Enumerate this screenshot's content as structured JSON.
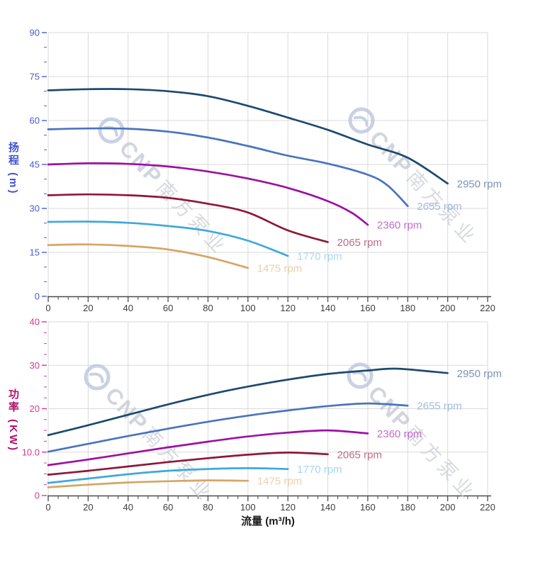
{
  "watermark": {
    "brand": "CNP",
    "brand_cn": "南方泵业",
    "logo": "cnp-circle-logo",
    "color": "#c6cbd6"
  },
  "palette": {
    "grid": "#dadada",
    "x_axis_line": "#4a4a4a",
    "x_tick_label": "#3d3d3d",
    "head_axis": "#4a5cd0",
    "head_title": "#3f51d0",
    "power_axis": "#d23c90",
    "power_title": "#b0126e"
  },
  "chart_data": [
    {
      "type": "line",
      "title": "",
      "ylabel": "扬程 (m)",
      "xlabel": "流量 (m³/h)",
      "xlim": [
        0,
        220
      ],
      "ylim": [
        0,
        90
      ],
      "grid": true,
      "legend_position": "curve-end-labels",
      "axis_color": "#4a5cd0",
      "title_color": "#3f51d0",
      "x_ticks": {
        "values": [
          0,
          20,
          40,
          60,
          80,
          100,
          120,
          140,
          160,
          180,
          200,
          220
        ],
        "labels": [
          "0",
          "20",
          "40",
          "60",
          "80",
          "100",
          "120",
          "140",
          "160",
          "180",
          "200",
          "220"
        ]
      },
      "y_ticks": {
        "values": [
          0,
          15,
          30,
          45,
          60,
          75,
          90
        ],
        "labels": [
          "0",
          "15",
          "30",
          "45",
          "60",
          "75",
          "90"
        ]
      },
      "x_minor_step": 5,
      "y_minor_step": 5,
      "series": [
        {
          "name": "2950 rpm",
          "color": "#1c4a70",
          "label_color": "#7b93b5",
          "points": [
            [
              0,
              70.3
            ],
            [
              20,
              70.7
            ],
            [
              40,
              70.7
            ],
            [
              60,
              70.0
            ],
            [
              80,
              68.3
            ],
            [
              100,
              65.0
            ],
            [
              120,
              61.0
            ],
            [
              140,
              56.8
            ],
            [
              160,
              51.8
            ],
            [
              180,
              47.3
            ],
            [
              200,
              38.5
            ]
          ]
        },
        {
          "name": "2655 rpm",
          "color": "#4a73c0",
          "label_color": "#a3bbdf",
          "points": [
            [
              0,
              57.0
            ],
            [
              20,
              57.3
            ],
            [
              40,
              57.2
            ],
            [
              60,
              56.2
            ],
            [
              80,
              54.2
            ],
            [
              100,
              51.3
            ],
            [
              120,
              48.0
            ],
            [
              140,
              45.3
            ],
            [
              160,
              41.5
            ],
            [
              170,
              37.8
            ],
            [
              180,
              30.8
            ]
          ]
        },
        {
          "name": "2360 rpm",
          "color": "#9c10a5",
          "label_color": "#c46ed0",
          "points": [
            [
              0,
              45.0
            ],
            [
              20,
              45.4
            ],
            [
              40,
              45.2
            ],
            [
              60,
              44.3
            ],
            [
              80,
              42.6
            ],
            [
              100,
              40.2
            ],
            [
              120,
              37.0
            ],
            [
              140,
              32.5
            ],
            [
              152,
              28.5
            ],
            [
              160,
              24.4
            ]
          ]
        },
        {
          "name": "2065 rpm",
          "color": "#8e1838",
          "label_color": "#bd6d8a",
          "points": [
            [
              0,
              34.5
            ],
            [
              20,
              34.8
            ],
            [
              40,
              34.5
            ],
            [
              60,
              33.6
            ],
            [
              80,
              31.6
            ],
            [
              100,
              28.6
            ],
            [
              120,
              22.5
            ],
            [
              140,
              18.5
            ]
          ]
        },
        {
          "name": "1770 rpm",
          "color": "#3fa8dd",
          "label_color": "#a6d7f2",
          "points": [
            [
              0,
              25.4
            ],
            [
              20,
              25.5
            ],
            [
              40,
              25.1
            ],
            [
              60,
              24.0
            ],
            [
              80,
              22.3
            ],
            [
              100,
              19.0
            ],
            [
              120,
              13.8
            ]
          ]
        },
        {
          "name": "1475 rpm",
          "color": "#d8a464",
          "label_color": "#ead0ab",
          "points": [
            [
              0,
              17.5
            ],
            [
              20,
              17.7
            ],
            [
              40,
              17.2
            ],
            [
              60,
              16.0
            ],
            [
              80,
              13.4
            ],
            [
              100,
              9.7
            ]
          ]
        }
      ]
    },
    {
      "type": "line",
      "title": "",
      "ylabel": "功率 (KW)",
      "xlabel": "流量 (m³/h)",
      "xlim": [
        0,
        220
      ],
      "ylim": [
        0,
        40
      ],
      "grid": true,
      "legend_position": "curve-end-labels",
      "axis_color": "#d23c90",
      "title_color": "#b0126e",
      "x_ticks": {
        "values": [
          0,
          20,
          40,
          60,
          80,
          100,
          120,
          140,
          160,
          180,
          200,
          220
        ],
        "labels": [
          "0",
          "20",
          "40",
          "60",
          "80",
          "100",
          "120",
          "140",
          "160",
          "180",
          "200",
          "220"
        ]
      },
      "y_ticks": {
        "values": [
          0,
          10,
          20,
          30,
          40
        ],
        "labels": [
          "0",
          "10.0",
          "20",
          "30",
          "40"
        ]
      },
      "x_minor_step": 5,
      "y_minor_step": 2.5,
      "series": [
        {
          "name": "2950 rpm",
          "color": "#1c4a70",
          "label_color": "#7b93b5",
          "points": [
            [
              0,
              13.9
            ],
            [
              20,
              16.2
            ],
            [
              40,
              18.6
            ],
            [
              60,
              21.0
            ],
            [
              80,
              23.2
            ],
            [
              100,
              25.1
            ],
            [
              120,
              26.7
            ],
            [
              140,
              28.0
            ],
            [
              160,
              28.8
            ],
            [
              175,
              29.2
            ],
            [
              200,
              28.2
            ]
          ]
        },
        {
          "name": "2655 rpm",
          "color": "#4a73c0",
          "label_color": "#a3bbdf",
          "points": [
            [
              0,
              10.1
            ],
            [
              20,
              11.9
            ],
            [
              40,
              13.7
            ],
            [
              60,
              15.4
            ],
            [
              80,
              17.0
            ],
            [
              100,
              18.4
            ],
            [
              120,
              19.6
            ],
            [
              140,
              20.6
            ],
            [
              160,
              21.2
            ],
            [
              180,
              20.7
            ]
          ]
        },
        {
          "name": "2360 rpm",
          "color": "#9c10a5",
          "label_color": "#c46ed0",
          "points": [
            [
              0,
              7.0
            ],
            [
              20,
              8.3
            ],
            [
              40,
              9.7
            ],
            [
              60,
              11.1
            ],
            [
              80,
              12.4
            ],
            [
              100,
              13.6
            ],
            [
              120,
              14.5
            ],
            [
              140,
              15.0
            ],
            [
              160,
              14.3
            ]
          ]
        },
        {
          "name": "2065 rpm",
          "color": "#8e1838",
          "label_color": "#bd6d8a",
          "points": [
            [
              0,
              4.8
            ],
            [
              20,
              5.7
            ],
            [
              40,
              6.7
            ],
            [
              60,
              7.7
            ],
            [
              80,
              8.6
            ],
            [
              100,
              9.4
            ],
            [
              120,
              9.9
            ],
            [
              140,
              9.5
            ]
          ]
        },
        {
          "name": "1770 rpm",
          "color": "#3fa8dd",
          "label_color": "#a6d7f2",
          "points": [
            [
              0,
              2.9
            ],
            [
              20,
              3.9
            ],
            [
              40,
              4.9
            ],
            [
              60,
              5.7
            ],
            [
              80,
              6.1
            ],
            [
              100,
              6.3
            ],
            [
              120,
              6.1
            ]
          ]
        },
        {
          "name": "1475 rpm",
          "color": "#d8a464",
          "label_color": "#ead0ab",
          "points": [
            [
              0,
              1.9
            ],
            [
              20,
              2.5
            ],
            [
              40,
              3.0
            ],
            [
              60,
              3.3
            ],
            [
              80,
              3.5
            ],
            [
              100,
              3.4
            ]
          ]
        }
      ]
    }
  ]
}
